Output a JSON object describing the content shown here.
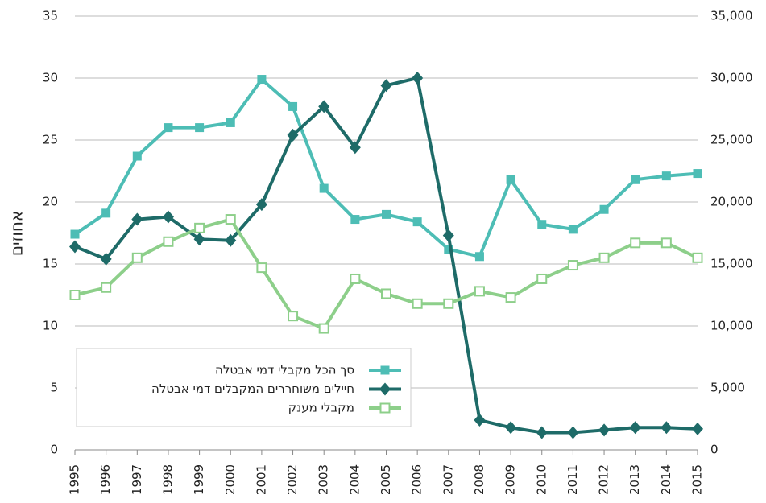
{
  "chart_data": {
    "type": "line",
    "y_label": "אחוזים",
    "x": [
      1995,
      1996,
      1997,
      1998,
      1999,
      2000,
      2001,
      2002,
      2003,
      2004,
      2005,
      2006,
      2007,
      2008,
      2009,
      2010,
      2011,
      2012,
      2013,
      2014,
      2015
    ],
    "xticks": [
      1995,
      1996,
      1997,
      1998,
      1999,
      2000,
      2001,
      2002,
      2003,
      2004,
      2005,
      2006,
      2007,
      2008,
      2009,
      2010,
      2011,
      2012,
      2013,
      2014,
      2015
    ],
    "xlim": [
      1995,
      2015
    ],
    "ylim": [
      0,
      35
    ],
    "yticks": [
      0,
      5,
      10,
      15,
      20,
      25,
      30,
      35
    ],
    "y2lim": [
      0,
      35000
    ],
    "y2ticks": [
      0,
      {
        "value": 5000,
        "label": "5,000"
      },
      {
        "value": 10000,
        "label": "10,000"
      },
      {
        "value": 15000,
        "label": "15,000"
      },
      {
        "value": 20000,
        "label": "20,000"
      },
      {
        "value": 25000,
        "label": "25,000"
      },
      {
        "value": 30000,
        "label": "30,000"
      },
      {
        "value": 35000,
        "label": "35,000"
      }
    ],
    "grid": true,
    "legend": "lower-left",
    "series": [
      {
        "name": "סך הכל מקבלי דמי אבטלה",
        "color": "#4dbdb5",
        "marker": "square",
        "values": [
          17.4,
          19.1,
          23.7,
          26.0,
          26.0,
          26.4,
          29.9,
          27.7,
          21.1,
          18.6,
          19.0,
          18.4,
          16.2,
          15.6,
          21.8,
          18.2,
          17.8,
          19.4,
          21.8,
          22.1,
          22.3
        ]
      },
      {
        "name": "חיילים משוחררים המקבלים דמי אבטלה",
        "color": "#1e6b68",
        "marker": "diamond",
        "axis": "y2",
        "values": [
          16400,
          15400,
          18600,
          18800,
          17000,
          16900,
          19800,
          25400,
          27700,
          24400,
          29400,
          30000,
          17300,
          2400,
          1800,
          1400,
          1400,
          1600,
          1800,
          1800,
          1700
        ]
      },
      {
        "name": "מקבלי מענק",
        "color": "#8dcf8a",
        "marker": "hollow-square",
        "values": [
          12.5,
          13.1,
          15.5,
          16.8,
          17.9,
          18.6,
          14.7,
          10.8,
          9.8,
          13.8,
          12.6,
          11.8,
          11.8,
          12.8,
          12.3,
          13.8,
          14.9,
          15.5,
          16.7,
          16.7,
          15.5
        ]
      }
    ]
  }
}
